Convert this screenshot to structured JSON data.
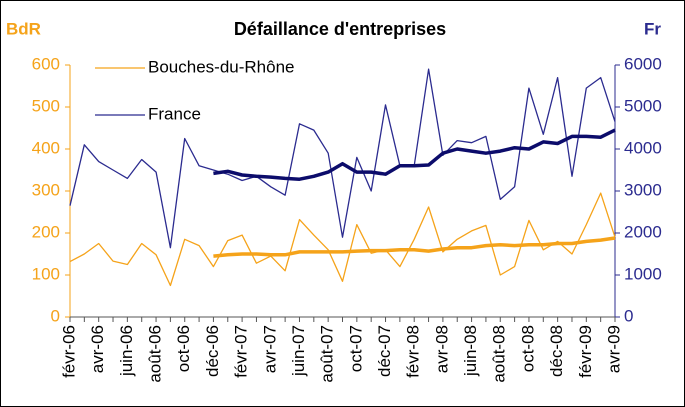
{
  "chart_data": {
    "type": "line",
    "title": "Défaillance d'entreprises",
    "ylabel": "BdR",
    "y2label": "Fr",
    "categories": [
      "févr-06",
      null,
      "avr-06",
      null,
      "juin-06",
      null,
      "août-06",
      null,
      "oct-06",
      null,
      "déc-06",
      null,
      "févr-07",
      null,
      "avr-07",
      null,
      "juin-07",
      null,
      "août-07",
      null,
      "oct-07",
      null,
      "déc-07",
      null,
      "févr-08",
      null,
      "avr-08",
      null,
      "juin-08",
      null,
      "août-08",
      null,
      "oct-08",
      null,
      "déc-08",
      null,
      "févr-09",
      null,
      "avr-09"
    ],
    "series": [
      {
        "name": "Bouches-du-Rhône",
        "color": "#f5a31a",
        "width": 1.3,
        "values": [
          132,
          150,
          175,
          133,
          125,
          175,
          148,
          75,
          185,
          170,
          120,
          182,
          195,
          128,
          145,
          110,
          232,
          195,
          160,
          85,
          220,
          152,
          160,
          120,
          185,
          262,
          155,
          185,
          205,
          218,
          100,
          120,
          230,
          160,
          180,
          150,
          220,
          295,
          190
        ]
      },
      {
        "name": "France",
        "color": "#2b2b8f",
        "width": 1.3,
        "axis": "y2",
        "values": [
          2650,
          4100,
          3700,
          3500,
          3300,
          3750,
          3450,
          1650,
          4250,
          3600,
          3500,
          3400,
          3250,
          3350,
          3100,
          2900,
          4600,
          4450,
          3900,
          1900,
          3800,
          3000,
          5050,
          3600,
          3600,
          5900,
          3850,
          4200,
          4150,
          4300,
          2800,
          3100,
          5450,
          4350,
          5700,
          3350,
          5450,
          5700,
          4650
        ]
      },
      {
        "color": "#f5a31a",
        "width": 3.5,
        "values": [
          null,
          null,
          null,
          null,
          null,
          null,
          null,
          null,
          null,
          null,
          145,
          148,
          150,
          150,
          148,
          148,
          155,
          155,
          155,
          155,
          157,
          158,
          158,
          160,
          160,
          157,
          162,
          165,
          165,
          170,
          172,
          170,
          172,
          172,
          175,
          175,
          180,
          183,
          188
        ]
      },
      {
        "color": "#0c0c6b",
        "width": 3.5,
        "axis": "y2",
        "values": [
          null,
          null,
          null,
          null,
          null,
          null,
          null,
          null,
          null,
          null,
          3420,
          3470,
          3380,
          3350,
          3330,
          3300,
          3280,
          3350,
          3450,
          3650,
          3450,
          3450,
          3400,
          3600,
          3600,
          3620,
          3900,
          4000,
          3950,
          3900,
          3950,
          4030,
          4000,
          4170,
          4130,
          4300,
          4300,
          4280,
          4450
        ]
      }
    ],
    "ylim": [
      0,
      600
    ],
    "yticks": [
      0,
      100,
      200,
      300,
      400,
      500,
      600
    ],
    "ycolor": "#f5a31a",
    "y2lim": [
      0,
      6000
    ],
    "y2ticks": [
      0,
      1000,
      2000,
      3000,
      4000,
      5000,
      6000
    ],
    "y2color": "#2b2b8f"
  }
}
